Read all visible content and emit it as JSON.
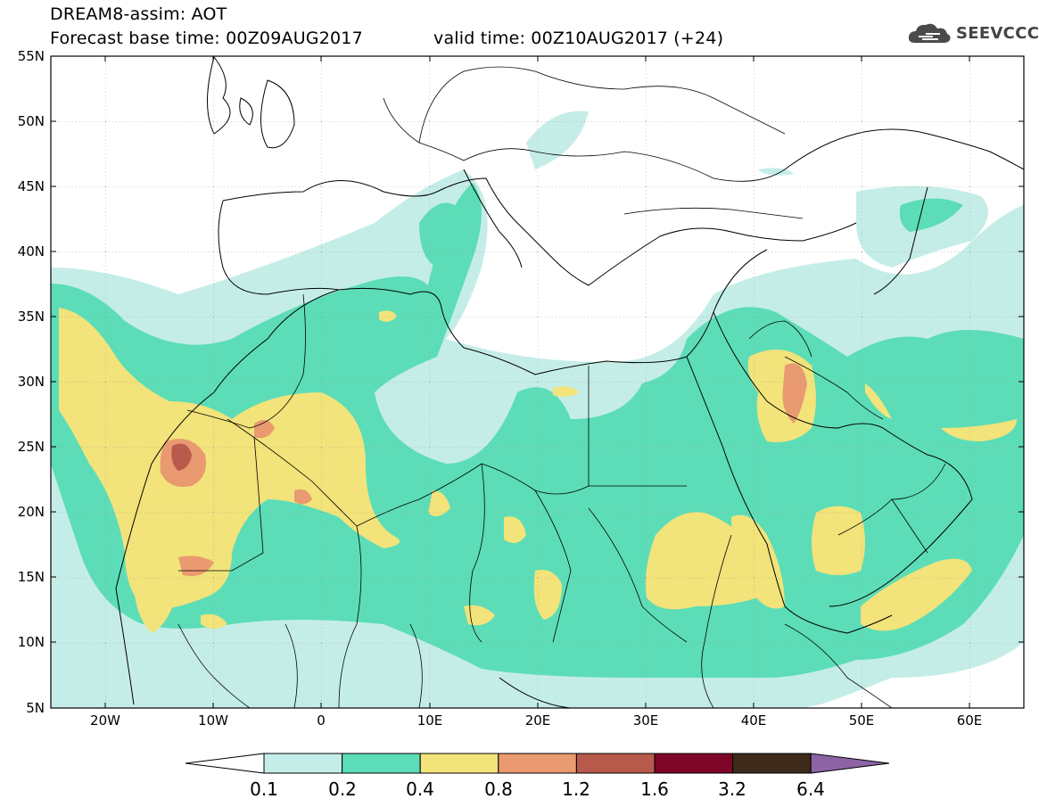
{
  "header": {
    "model_line": "DREAM8-assim: AOT",
    "base_time_line": "Forecast base time: 00Z09AUG2017",
    "valid_time_line": "valid time: 00Z10AUG2017 (+24)"
  },
  "logo": {
    "text": "SEEVCCC",
    "icon": "cloud-icon"
  },
  "map": {
    "variable": "AOT",
    "lat_ticks": [
      "55N",
      "50N",
      "45N",
      "40N",
      "35N",
      "30N",
      "25N",
      "20N",
      "15N",
      "10N",
      "5N"
    ],
    "lon_ticks": [
      "20W",
      "10W",
      "0",
      "10E",
      "20E",
      "30E",
      "40E",
      "50E",
      "60E"
    ],
    "lat_range": [
      5,
      55
    ],
    "lon_range": [
      -25,
      65
    ],
    "grid": "dotted"
  },
  "colorbar": {
    "levels": [
      "0.1",
      "0.2",
      "0.4",
      "0.8",
      "1.2",
      "1.6",
      "3.2",
      "6.4"
    ],
    "colors": [
      "#ffffff",
      "#c5ede7",
      "#5cddb7",
      "#f2e37a",
      "#e99a70",
      "#b85a4b",
      "#7d0527",
      "#3e2a1a",
      "#8e63a6"
    ]
  }
}
